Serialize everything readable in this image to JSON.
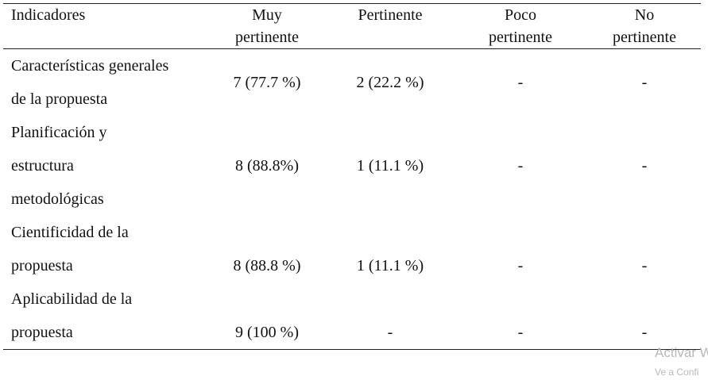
{
  "table": {
    "header": [
      "Indicadores",
      "Muy pertinente",
      "Pertinente",
      "Poco pertinente",
      "No pertinente"
    ],
    "rows": [
      [
        "Características generales de la propuesta",
        "7 (77.7 %)",
        "2 (22.2 %)",
        "-",
        "-"
      ],
      [
        "Planificación y estructura metodológicas",
        "8 (88.8%)",
        "1 (11.1 %)",
        "-",
        "-"
      ],
      [
        "Cientificidad de la propuesta",
        "8 (88.8 %)",
        "1 (11.1 %)",
        "-",
        "-"
      ],
      [
        "Aplicabilidad de la propuesta",
        "9 (100 %)",
        "-",
        "-",
        "-"
      ]
    ]
  },
  "watermark": {
    "title": "Activar W",
    "subtitle": "Ve a Confi"
  }
}
